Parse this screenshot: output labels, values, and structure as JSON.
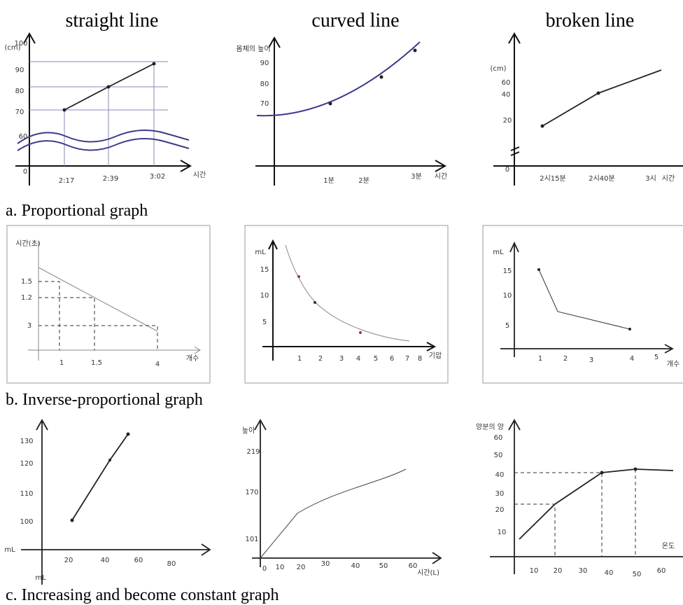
{
  "columns": [
    "straight line",
    "curved line",
    "broken line"
  ],
  "rows": [
    {
      "caption": "a. Proportional graph",
      "panels": [
        {
          "labels": [
            "(cm)",
            "100",
            "90",
            "80",
            "70",
            "60",
            "0",
            "2:17",
            "2:39",
            "3:02",
            "시간"
          ]
        },
        {
          "labels": [
            "몸체의 높이",
            "90",
            "80",
            "70",
            "1분",
            "2분",
            "3분",
            "시간"
          ]
        },
        {
          "labels": [
            "(cm)",
            "60",
            "40",
            "20",
            "0",
            "2시15분",
            "2시40분",
            "3시",
            "시간"
          ]
        }
      ]
    },
    {
      "caption": "b. Inverse-proportional graph",
      "panels": [
        {
          "labels": [
            "시간(초)",
            "1.5",
            "1.2",
            "3",
            "1",
            "1.5",
            "4",
            "개수"
          ]
        },
        {
          "labels": [
            "mL",
            "15",
            "10",
            "5",
            "1",
            "2",
            "3",
            "4",
            "5",
            "6",
            "7",
            "8",
            "기압"
          ]
        },
        {
          "labels": [
            "mL",
            "15",
            "10",
            "5",
            "1",
            "2",
            "3",
            "4",
            "5",
            "개수"
          ]
        }
      ]
    },
    {
      "caption": "c. Increasing and become constant graph",
      "panels": [
        {
          "labels": [
            "130",
            "120",
            "110",
            "100",
            "mL",
            "mL",
            "20",
            "40",
            "60",
            "80"
          ]
        },
        {
          "labels": [
            "높이",
            "219",
            "170",
            "101",
            "0",
            "10",
            "20",
            "30",
            "40",
            "50",
            "60",
            "시간(L)"
          ]
        },
        {
          "labels": [
            "양분의 양",
            "60",
            "50",
            "40",
            "30",
            "20",
            "10",
            "10",
            "20",
            "30",
            "40",
            "50",
            "60",
            "온도"
          ]
        }
      ]
    }
  ]
}
